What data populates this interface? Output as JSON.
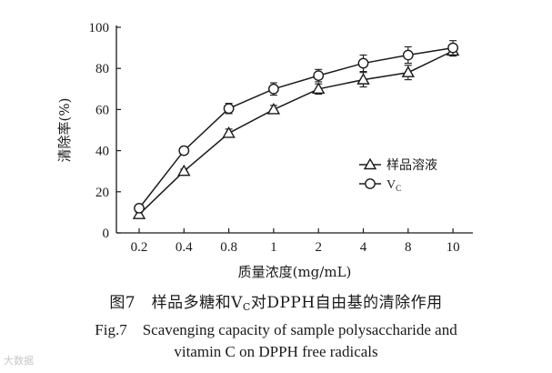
{
  "chart_data": {
    "type": "line",
    "categories": [
      "0.2",
      "0.4",
      "0.8",
      "1",
      "2",
      "4",
      "8",
      "10"
    ],
    "xlabel": "质量浓度(mg/mL)",
    "ylabel": "清除率(%)",
    "ylim": [
      0,
      100
    ],
    "yticks": [
      "0",
      "20",
      "40",
      "60",
      "80",
      "100"
    ],
    "grid": false,
    "legend_position": "right-middle",
    "series": [
      {
        "name": "样品溶液",
        "marker": "triangle",
        "values": [
          9,
          30,
          48.5,
          60,
          70,
          74.5,
          78,
          88.5
        ],
        "errors": [
          1,
          1,
          2,
          2,
          2.5,
          3.5,
          3.5,
          2.5
        ]
      },
      {
        "name": "V_C",
        "name_main": "V",
        "name_sub": "C",
        "marker": "circle",
        "values": [
          12,
          40,
          60.5,
          70,
          76.5,
          82.5,
          86.5,
          90
        ],
        "errors": [
          1,
          1,
          2.5,
          3,
          3,
          4,
          4,
          3.5
        ]
      }
    ]
  },
  "caption": {
    "cn_prefix": "图7　样品多糖和V",
    "cn_sub": "C",
    "cn_suffix": "对DPPH自由基的清除作用",
    "en_line1": "Fig.7　Scavenging capacity of sample polysaccharide and",
    "en_line2": "vitamin C on DPPH free radicals"
  },
  "watermark": "大数据",
  "colors": {
    "line": "#1a1a1a",
    "background": "#ffffff"
  }
}
